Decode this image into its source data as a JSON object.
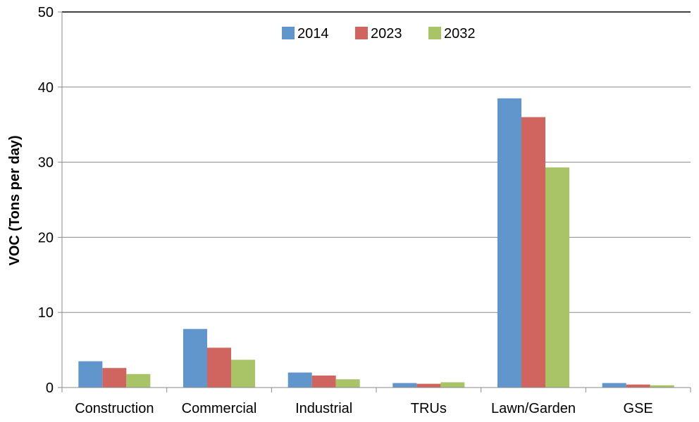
{
  "chart_data": {
    "type": "bar",
    "title": "",
    "xlabel": "",
    "ylabel": "VOC (Tons per day)",
    "ylim": [
      0,
      50
    ],
    "yticks": [
      0,
      10,
      20,
      30,
      40,
      50
    ],
    "ytick_labels": [
      "0",
      "10",
      "20",
      "30",
      "40",
      "50"
    ],
    "grid": true,
    "legend_position": "top",
    "categories": [
      "Construction",
      "Commercial",
      "Industrial",
      "TRUs",
      "Lawn/Garden",
      "GSE"
    ],
    "series": [
      {
        "name": "2014",
        "color": "#6096CC",
        "values": [
          3.5,
          7.8,
          2.0,
          0.6,
          38.5,
          0.6
        ]
      },
      {
        "name": "2023",
        "color": "#D0655F",
        "values": [
          2.6,
          5.3,
          1.6,
          0.5,
          36.0,
          0.4
        ]
      },
      {
        "name": "2032",
        "color": "#A8C467",
        "values": [
          1.8,
          3.7,
          1.1,
          0.7,
          29.3,
          0.3
        ]
      }
    ]
  }
}
